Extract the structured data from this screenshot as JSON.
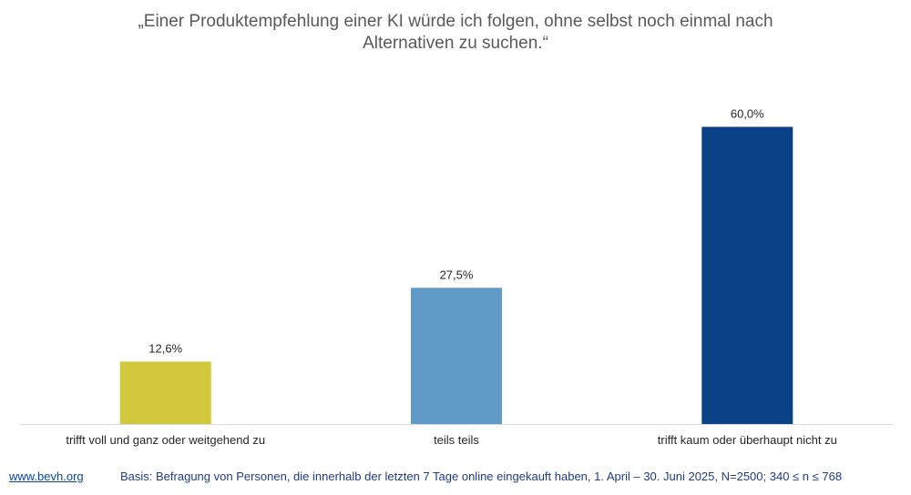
{
  "chart_data": {
    "type": "bar",
    "title_lines": [
      "„Einer Produktempfehlung einer KI würde ich folgen, ohne selbst noch einmal nach",
      "Alternativen zu suchen.“"
    ],
    "categories": [
      "trifft voll und ganz oder weitgehend zu",
      "teils teils",
      "trifft kaum oder überhaupt nicht zu"
    ],
    "values": [
      12.6,
      27.5,
      60.0
    ],
    "value_labels": [
      "12,6%",
      "27,5%",
      "60,0%"
    ],
    "colors": [
      "#d2c83c",
      "#5f9bc6",
      "#0a4187"
    ],
    "ylim": [
      0,
      70
    ],
    "grid": false,
    "legend": false
  },
  "footer": {
    "link": "www.bevh.org",
    "basis": "Basis: Befragung von Personen, die innerhalb der letzten 7 Tage online eingekauft haben, 1. April – 30. Juni 2025, N=2500; 340 ≤ n ≤ 768"
  }
}
